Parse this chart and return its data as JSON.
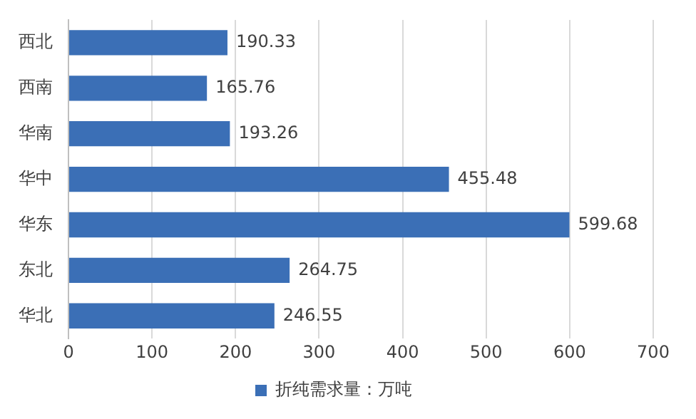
{
  "chart_data": {
    "type": "bar",
    "orientation": "horizontal",
    "categories": [
      "西北",
      "西南",
      "华南",
      "华中",
      "华东",
      "东北",
      "华北"
    ],
    "series": [
      {
        "name": "折纯需求量：万吨",
        "color": "#3b6fb6",
        "values": [
          190.33,
          165.76,
          193.26,
          455.48,
          599.68,
          264.75,
          246.55
        ]
      }
    ],
    "xlim": [
      0,
      700
    ],
    "xticks": [
      0,
      100,
      200,
      300,
      400,
      500,
      600,
      700
    ],
    "grid": "x",
    "legend": "bottom",
    "data_labels": true
  }
}
